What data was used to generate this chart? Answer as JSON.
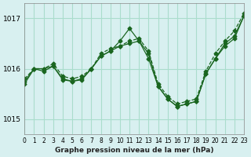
{
  "title": "Graphe pression niveau de la mer (hPa)",
  "background_color": "#d8f0f0",
  "grid_color": "#aaddcc",
  "line_color": "#1a6620",
  "xlim": [
    0,
    23
  ],
  "ylim": [
    1014.7,
    1017.3
  ],
  "yticks": [
    1015,
    1016,
    1017
  ],
  "xticks": [
    0,
    1,
    2,
    3,
    4,
    5,
    6,
    7,
    8,
    9,
    10,
    11,
    12,
    13,
    14,
    15,
    16,
    17,
    18,
    19,
    20,
    21,
    22,
    23
  ],
  "series1": {
    "x": [
      0,
      1,
      2,
      3,
      4,
      5,
      6,
      7,
      8,
      9,
      10,
      11,
      12,
      13,
      14,
      15,
      16,
      17,
      18,
      19,
      20,
      21,
      22,
      23
    ],
    "y": [
      1015.8,
      1016.0,
      1016.0,
      1016.1,
      1015.85,
      1015.8,
      1015.85,
      1016.0,
      1016.3,
      1016.4,
      1016.45,
      1016.55,
      1016.6,
      1016.35,
      1015.7,
      1015.45,
      1015.3,
      1015.35,
      1015.4,
      1015.95,
      1016.3,
      1016.55,
      1016.75,
      1017.1
    ]
  },
  "series2": {
    "x": [
      0,
      1,
      2,
      3,
      4,
      5,
      6,
      7,
      8,
      9,
      10,
      11,
      12,
      13,
      14,
      15,
      16,
      17,
      18,
      19,
      20,
      21,
      22,
      23
    ],
    "y": [
      1015.75,
      1016.0,
      1015.95,
      1016.05,
      1015.8,
      1015.75,
      1015.8,
      1016.0,
      1016.25,
      1016.35,
      1016.55,
      1016.8,
      1016.55,
      1016.2,
      1015.65,
      1015.4,
      1015.25,
      1015.3,
      1015.35,
      1015.9,
      1016.2,
      1016.5,
      1016.65,
      1017.05
    ]
  },
  "series3": {
    "x": [
      0,
      1,
      2,
      3,
      4,
      5,
      6,
      7,
      8,
      9,
      10,
      11,
      12,
      13,
      14,
      15,
      16,
      17,
      18,
      19,
      20,
      21,
      22,
      23
    ],
    "y": [
      1015.7,
      1016.0,
      1016.0,
      1016.05,
      1015.78,
      1015.75,
      1015.78,
      1016.0,
      1016.25,
      1016.35,
      1016.45,
      1016.5,
      1016.55,
      1016.3,
      1015.65,
      1015.4,
      1015.25,
      1015.3,
      1015.35,
      1015.9,
      1016.2,
      1016.45,
      1016.6,
      1017.05
    ]
  }
}
